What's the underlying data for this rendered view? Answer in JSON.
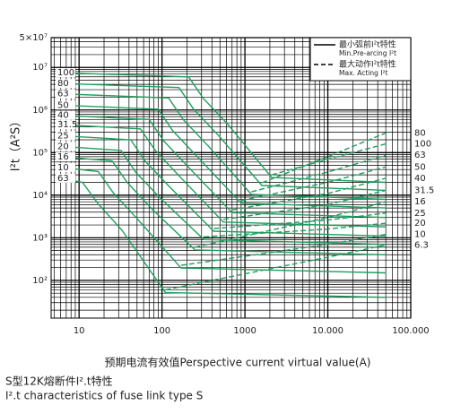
{
  "chart_data": {
    "type": "line",
    "y_axis_label": "I²t（A²S）",
    "x_axis_label": "预期电流有效值Perspective current virtual value(A)",
    "caption": [
      "S型12K熔断件I².t特性",
      "I².t characteristics of fuse link type S"
    ],
    "log_x": true,
    "log_y": true,
    "grid": true,
    "xlim": [
      4.6,
      100000
    ],
    "ylim": [
      13,
      50000000
    ],
    "xticks": [
      10,
      100,
      1000,
      {
        "value": 10000,
        "label": "10.000"
      },
      {
        "value": 100000,
        "label": "100.000"
      }
    ],
    "yticks": [
      {
        "value": 100,
        "label": "10²"
      },
      {
        "value": 1000,
        "label": "10³"
      },
      {
        "value": 10000,
        "label": "10⁴"
      },
      {
        "value": 100000,
        "label": "10⁵"
      },
      {
        "value": 1000000,
        "label": "10⁶"
      },
      {
        "value": 10000000,
        "label": "10⁷"
      },
      {
        "value": 50000000,
        "label": "5×10⁷"
      }
    ],
    "legend_position": "upper right",
    "legend": [
      {
        "style": "solid",
        "label": "最小弧前I²t特性",
        "label_en": "Min.Pre-arcing I²t"
      },
      {
        "style": "dashed",
        "label": "最大动作I²t特性",
        "label_en": "Max. Acting I²t"
      }
    ],
    "series": [
      {
        "name": "100",
        "style": "solid",
        "color": "#1f9e5e",
        "x": [
          6,
          210,
          315,
          630,
          2100,
          50000
        ],
        "values": [
          7500000,
          6000000,
          1875000,
          450000,
          26000,
          20000
        ]
      },
      {
        "name": "80",
        "style": "solid",
        "color": "#1f9e5e",
        "x": [
          6,
          160,
          240,
          480,
          1600,
          50000
        ],
        "values": [
          4200000,
          3360000,
          1050000,
          252000,
          16900,
          13000
        ]
      },
      {
        "name": "63",
        "style": "solid",
        "color": "#1f9e5e",
        "x": [
          6,
          120,
          180,
          360,
          1200,
          50000
        ],
        "values": [
          2400000,
          1920000,
          600000,
          144000,
          10400,
          8000
        ]
      },
      {
        "name": "50",
        "style": "solid",
        "color": "#1f9e5e",
        "x": [
          6,
          90,
          135,
          270,
          900,
          50000
        ],
        "values": [
          1300000,
          1040000,
          325000,
          78000,
          6500,
          5000
        ]
      },
      {
        "name": "40",
        "style": "solid",
        "color": "#1f9e5e",
        "x": [
          6,
          70,
          105,
          210,
          700,
          50000
        ],
        "values": [
          750000,
          600000,
          187500,
          45000,
          3900,
          3000
        ]
      },
      {
        "name": "31.5",
        "style": "solid",
        "color": "#1f9e5e",
        "x": [
          6,
          55,
          83,
          165,
          550,
          50000
        ],
        "values": [
          450000,
          360000,
          112500,
          27000,
          2340,
          1800
        ]
      },
      {
        "name": "25",
        "style": "solid",
        "color": "#1f9e5e",
        "x": [
          6,
          42,
          63,
          126,
          420,
          50000
        ],
        "values": [
          250000,
          200000,
          62500,
          15000,
          1430,
          1100
        ]
      },
      {
        "name": "20",
        "style": "solid",
        "color": "#1f9e5e",
        "x": [
          6,
          32,
          48,
          96,
          320,
          50000
        ],
        "values": [
          140000,
          112000,
          35000,
          8400,
          910,
          700
        ]
      },
      {
        "name": "16",
        "style": "solid",
        "color": "#1f9e5e",
        "x": [
          6,
          25,
          38,
          75,
          250,
          50000
        ],
        "values": [
          80000,
          64000,
          20000,
          4800,
          520,
          400
        ]
      },
      {
        "name": "10",
        "style": "solid",
        "color": "#1f9e5e",
        "x": [
          6,
          17,
          26,
          51,
          170,
          50000
        ],
        "values": [
          45000,
          36000,
          11250,
          2700,
          195,
          150
        ]
      },
      {
        "name": "63",
        "style": "solid",
        "color": "#1f9e5e",
        "x": [
          6,
          11,
          17,
          33,
          110,
          50000
        ],
        "values": [
          25000,
          20000,
          6250,
          1500,
          52,
          40
        ]
      },
      {
        "name": "80",
        "style": "dashed",
        "color": "#1f9e5e",
        "x": [
          1600,
          10000,
          50000
        ],
        "values": [
          19500,
          80000,
          290000
        ]
      },
      {
        "name": "100",
        "style": "dashed",
        "color": "#1f9e5e",
        "x": [
          2100,
          10000,
          50000
        ],
        "values": [
          30000,
          70000,
          160000
        ]
      },
      {
        "name": "63",
        "style": "dashed",
        "color": "#1f9e5e",
        "x": [
          1200,
          10000,
          50000
        ],
        "values": [
          12000,
          35000,
          87000
        ]
      },
      {
        "name": "50",
        "style": "dashed",
        "color": "#1f9e5e",
        "x": [
          900,
          10000,
          50000
        ],
        "values": [
          7500,
          20000,
          46000
        ]
      },
      {
        "name": "40",
        "style": "dashed",
        "color": "#1f9e5e",
        "x": [
          700,
          10000,
          50000
        ],
        "values": [
          4500,
          11000,
          25000
        ]
      },
      {
        "name": "31.5",
        "style": "dashed",
        "color": "#1f9e5e",
        "x": [
          550,
          10000,
          50000
        ],
        "values": [
          2700,
          6000,
          13000
        ]
      },
      {
        "name": "16",
        "style": "dashed",
        "color": "#1f9e5e",
        "x": [
          250,
          10000,
          50000
        ],
        "values": [
          600,
          3000,
          7000
        ]
      },
      {
        "name": "25",
        "style": "dashed",
        "color": "#1f9e5e",
        "x": [
          420,
          10000,
          50000
        ],
        "values": [
          1650,
          2600,
          3800
        ]
      },
      {
        "name": "20",
        "style": "dashed",
        "color": "#1f9e5e",
        "x": [
          320,
          10000,
          50000
        ],
        "values": [
          1050,
          1600,
          2200
        ]
      },
      {
        "name": "10",
        "style": "dashed",
        "color": "#1f9e5e",
        "x": [
          170,
          10000,
          50000
        ],
        "values": [
          225,
          700,
          1200
        ]
      },
      {
        "name": "6.3",
        "style": "dashed",
        "color": "#1f9e5e",
        "x": [
          110,
          10000,
          50000
        ],
        "values": [
          60,
          350,
          680
        ]
      }
    ]
  }
}
